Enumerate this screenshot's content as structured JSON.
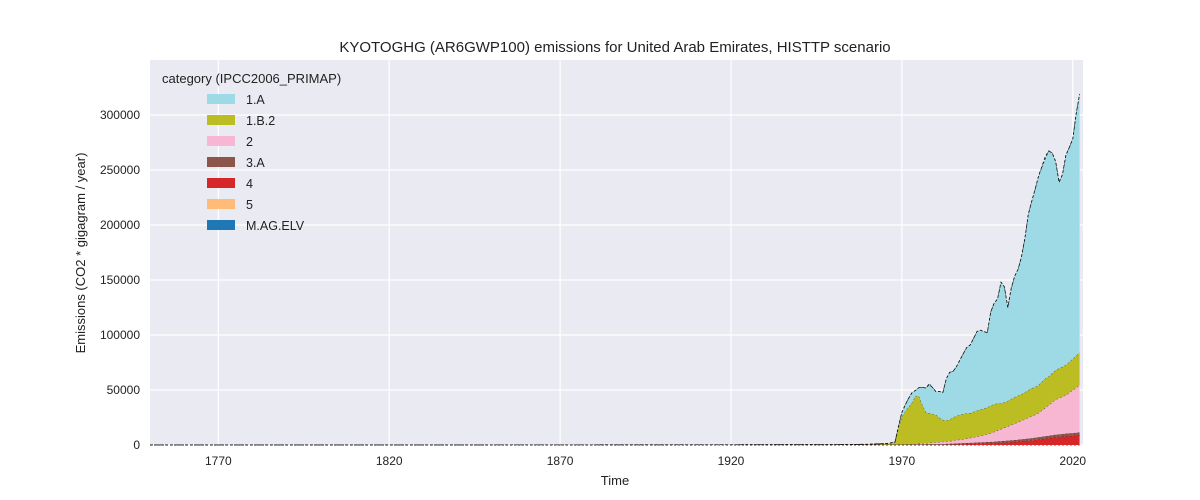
{
  "chart_data": {
    "type": "area",
    "stacked": true,
    "title": "KYOTOGHG (AR6GWP100) emissions for United Arab Emirates, HISTTP scenario",
    "xlabel": "Time",
    "ylabel": "Emissions (CO2 * gigagram / year)",
    "xlim": [
      1750,
      2023
    ],
    "ylim": [
      0,
      350000
    ],
    "x_ticks": [
      1770,
      1820,
      1870,
      1920,
      1970,
      2020
    ],
    "y_ticks": [
      0,
      50000,
      100000,
      150000,
      200000,
      250000,
      300000
    ],
    "grid": true,
    "background": "#eaeaf2",
    "legend": {
      "title": "category (IPCC2006_PRIMAP)",
      "position": "top-left"
    },
    "x": [
      1750,
      1850,
      1950,
      1960,
      1966,
      1968,
      1969,
      1970,
      1971,
      1972,
      1973,
      1974,
      1975,
      1976,
      1977,
      1978,
      1979,
      1980,
      1981,
      1982,
      1983,
      1984,
      1985,
      1986,
      1987,
      1988,
      1989,
      1990,
      1991,
      1992,
      1993,
      1994,
      1995,
      1996,
      1997,
      1998,
      1999,
      2000,
      2001,
      2002,
      2003,
      2004,
      2005,
      2006,
      2007,
      2008,
      2009,
      2010,
      2011,
      2012,
      2013,
      2014,
      2015,
      2016,
      2017,
      2018,
      2019,
      2020,
      2021,
      2022
    ],
    "series": [
      {
        "name": "M.AG.ELV",
        "color": "#1f77b4",
        "values": [
          0,
          0,
          0,
          0,
          0,
          0,
          0,
          0,
          0,
          0,
          0,
          0,
          0,
          0,
          0,
          0,
          0,
          0,
          0,
          0,
          0,
          0,
          0,
          0,
          0,
          0,
          0,
          0,
          0,
          0,
          0,
          0,
          0,
          0,
          0,
          0,
          0,
          0,
          0,
          0,
          0,
          0,
          0,
          0,
          0,
          0,
          0,
          0,
          0,
          0,
          0,
          0,
          0,
          0,
          0,
          0,
          0,
          0,
          0,
          0
        ]
      },
      {
        "name": "5",
        "color": "#ffbb78",
        "values": [
          0,
          0,
          0,
          0,
          0,
          0,
          0,
          0,
          0,
          0,
          0,
          0,
          0,
          0,
          0,
          0,
          0,
          0,
          0,
          0,
          0,
          0,
          0,
          0,
          0,
          0,
          0,
          0,
          0,
          0,
          0,
          0,
          0,
          0,
          0,
          0,
          0,
          0,
          0,
          0,
          0,
          0,
          0,
          0,
          0,
          0,
          0,
          0,
          0,
          0,
          0,
          0,
          0,
          0,
          0,
          0,
          0,
          0,
          0,
          0
        ]
      },
      {
        "name": "4",
        "color": "#d62728",
        "values": [
          0,
          0,
          0,
          0,
          0,
          0,
          0,
          0,
          0,
          0,
          0,
          0,
          0,
          0,
          0,
          0,
          0,
          0,
          0,
          0,
          200,
          300,
          400,
          500,
          600,
          700,
          800,
          900,
          1000,
          1100,
          1200,
          1300,
          1400,
          1500,
          1600,
          1800,
          2000,
          2200,
          2400,
          2600,
          2800,
          3000,
          3300,
          3600,
          3900,
          4200,
          4600,
          5000,
          5400,
          5800,
          6200,
          6600,
          7000,
          7300,
          7600,
          7900,
          8100,
          8300,
          8500,
          8700
        ]
      },
      {
        "name": "3.A",
        "color": "#8c564b",
        "values": [
          50,
          80,
          300,
          400,
          450,
          500,
          550,
          600,
          620,
          640,
          660,
          680,
          700,
          720,
          740,
          760,
          780,
          800,
          820,
          840,
          860,
          880,
          900,
          920,
          950,
          980,
          1000,
          1050,
          1100,
          1150,
          1200,
          1250,
          1300,
          1350,
          1400,
          1450,
          1500,
          1550,
          1600,
          1650,
          1700,
          1750,
          1800,
          1850,
          1900,
          1950,
          2000,
          2050,
          2100,
          2150,
          2200,
          2250,
          2300,
          2350,
          2400,
          2450,
          2500,
          2550,
          2600,
          2650
        ]
      },
      {
        "name": "2",
        "color": "#f7b6d2",
        "values": [
          0,
          0,
          0,
          0,
          0,
          0,
          0,
          0,
          0,
          0,
          0,
          0,
          500,
          800,
          1000,
          1200,
          1400,
          1600,
          1800,
          2000,
          2200,
          2400,
          2700,
          3000,
          3300,
          3600,
          4000,
          4500,
          5000,
          5500,
          6000,
          6500,
          7000,
          8000,
          9000,
          10000,
          11000,
          12000,
          13000,
          14000,
          15000,
          16000,
          17000,
          18000,
          19000,
          20000,
          21000,
          22000,
          24000,
          26000,
          28000,
          30000,
          32000,
          33000,
          34000,
          35000,
          37000,
          39000,
          41000,
          43000
        ]
      },
      {
        "name": "1.B.2",
        "color": "#bcbd22",
        "values": [
          0,
          0,
          0,
          200,
          800,
          2000,
          15000,
          25000,
          30000,
          34000,
          38000,
          44000,
          43000,
          35000,
          28000,
          27000,
          26000,
          25000,
          22000,
          20000,
          19000,
          19500,
          21000,
          22000,
          22500,
          23000,
          23000,
          22500,
          23000,
          23500,
          24000,
          24000,
          24500,
          25000,
          25000,
          24500,
          23500,
          23000,
          23000,
          23500,
          24000,
          24000,
          24000,
          24500,
          25000,
          25500,
          25000,
          25500,
          26000,
          26500,
          26000,
          26500,
          26500,
          27000,
          27000,
          27500,
          28000,
          28500,
          29000,
          29500
        ]
      },
      {
        "name": "1.A",
        "color": "#9edae5",
        "values": [
          0,
          0,
          0,
          100,
          200,
          300,
          1500,
          4000,
          6000,
          8000,
          9000,
          5000,
          8000,
          16000,
          22000,
          27000,
          24000,
          21000,
          24000,
          25000,
          38000,
          43000,
          42000,
          45000,
          50000,
          55000,
          60000,
          62000,
          67000,
          72000,
          72000,
          70000,
          68000,
          85000,
          92000,
          95000,
          110000,
          105000,
          85000,
          100000,
          110000,
          115000,
          125000,
          140000,
          160000,
          170000,
          180000,
          190000,
          195000,
          200000,
          205000,
          200000,
          190000,
          170000,
          175000,
          190000,
          195000,
          200000,
          220000,
          235000
        ]
      }
    ],
    "total_line": [
      50,
      80,
      300,
      700,
      1450,
      2800,
      17050,
      29600,
      36620,
      42640,
      47660,
      49680,
      52200,
      52520,
      51740,
      54960,
      52180,
      48400,
      48620,
      47840,
      60260,
      66080,
      67000,
      71420,
      77350,
      83280,
      88800,
      90950,
      97100,
      103250,
      104400,
      103050,
      102200,
      120850,
      129000,
      132750,
      148000,
      143750,
      125000,
      142750,
      153500,
      159750,
      171100,
      187950,
      209800,
      221650,
      232600,
      244550,
      253500,
      262450,
      267400,
      265350,
      257800,
      238650,
      246000,
      263850,
      270600,
      278350,
      301100,
      318850
    ]
  }
}
